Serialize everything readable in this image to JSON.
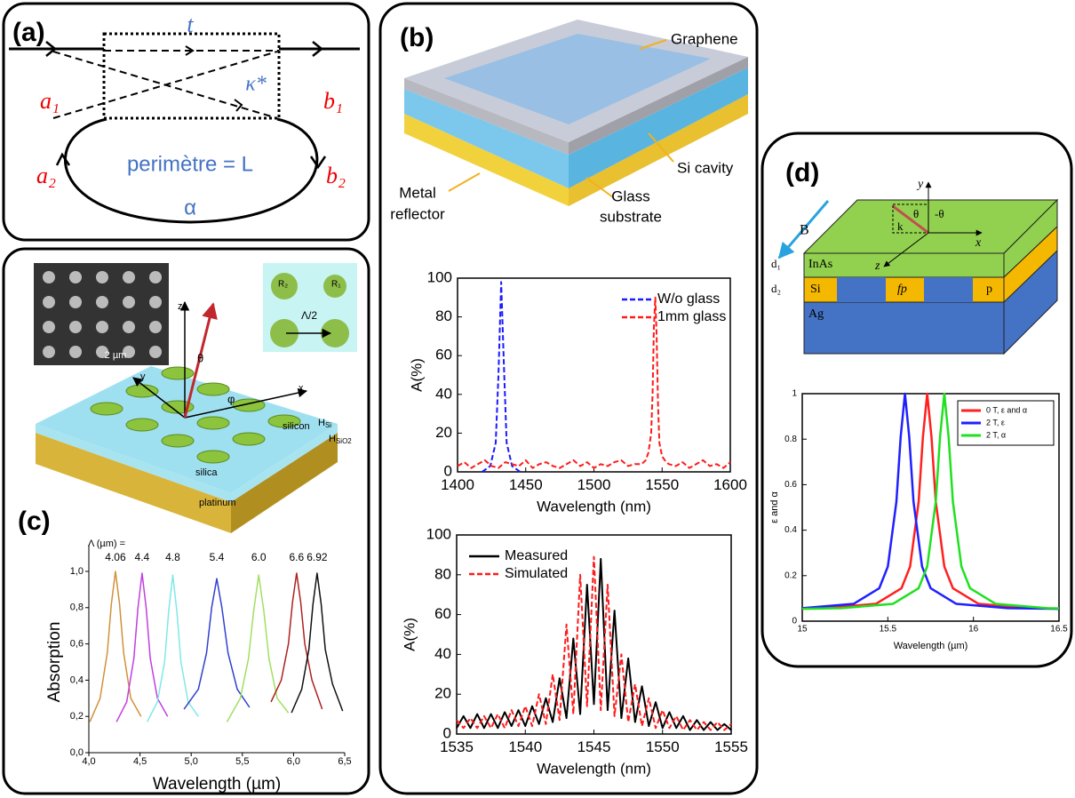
{
  "panel_labels": [
    "(a)",
    "(b)",
    "(c)",
    "(d)"
  ],
  "diagram_a": {
    "t": "t",
    "kappa": "κ*",
    "a1": "a₁",
    "b1": "b₁",
    "a2": "a₂",
    "b2": "b₂",
    "perimeter": "perimètre = L",
    "alpha": "α"
  },
  "diagram_b": {
    "graphene": "Graphene",
    "si_cavity": "Si cavity",
    "glass": [
      "Glass",
      "substrate"
    ],
    "metal": [
      "Metal",
      "reflector"
    ]
  },
  "diagram_c": {
    "scale": "2 µm",
    "r2": "R₂",
    "r1": "R₁",
    "lambda_half": "Λ/2",
    "z": "z",
    "theta": "θ",
    "phi": "φ",
    "x": "x",
    "y": "y",
    "silicon": "silicon",
    "silica": "silica",
    "platinum": "platinum",
    "h_si": {
      "main": "H",
      "sub": "Si"
    },
    "h_sio2": {
      "main": "H",
      "sub": "SiO2"
    }
  },
  "diagram_d": {
    "b": "B",
    "y": "y",
    "theta": "θ",
    "minus_theta": "-θ",
    "k": "k",
    "x": "x",
    "z": "z",
    "d1": "d₁",
    "d2": "d₂",
    "inas": "InAs",
    "si": "Si",
    "fp": "fp",
    "p": "p",
    "ag": "Ag"
  },
  "chart_data": [
    {
      "type": "line",
      "xlabel": "Wavelength (nm)",
      "ylabel": "A(%)",
      "xlim": [
        1400,
        1600
      ],
      "ylim": [
        0,
        100
      ],
      "xticks": [
        1400,
        1450,
        1500,
        1550,
        1600
      ],
      "yticks": [
        0,
        20,
        40,
        60,
        80,
        100
      ],
      "frame": true,
      "legend": "upper right",
      "series": [
        {
          "name": "W/o glass",
          "color": "#1a1aff",
          "style": "dashed",
          "x": [
            1418,
            1424,
            1428,
            1430,
            1432,
            1434,
            1436,
            1440,
            1446
          ],
          "values": [
            0,
            3,
            15,
            50,
            98,
            55,
            15,
            3,
            0
          ]
        },
        {
          "name": "1mm glass",
          "color": "#ff1a1a",
          "style": "dashed",
          "x": [
            1400,
            1405,
            1410,
            1415,
            1420,
            1425,
            1430,
            1435,
            1440,
            1445,
            1450,
            1455,
            1460,
            1465,
            1470,
            1475,
            1480,
            1485,
            1490,
            1495,
            1500,
            1505,
            1510,
            1515,
            1520,
            1525,
            1530,
            1535,
            1538,
            1540,
            1542,
            1543,
            1544,
            1545,
            1546,
            1547,
            1548,
            1550,
            1553,
            1555,
            1560,
            1565,
            1570,
            1575,
            1580,
            1585,
            1590,
            1595,
            1600
          ],
          "values": [
            3,
            5,
            2,
            4,
            6,
            3,
            2,
            5,
            4,
            3,
            6,
            2,
            4,
            5,
            3,
            2,
            4,
            6,
            3,
            5,
            2,
            4,
            3,
            5,
            6,
            3,
            4,
            4,
            6,
            10,
            20,
            40,
            75,
            90,
            70,
            35,
            15,
            8,
            5,
            4,
            3,
            5,
            2,
            4,
            6,
            3,
            4,
            2,
            5
          ]
        }
      ]
    },
    {
      "type": "line",
      "xlabel": "Wavelength (nm)",
      "ylabel": "A(%)",
      "xlim": [
        1535,
        1555
      ],
      "ylim": [
        0,
        100
      ],
      "xticks": [
        1535,
        1540,
        1545,
        1550,
        1555
      ],
      "yticks": [
        0,
        20,
        40,
        60,
        80,
        100
      ],
      "frame": true,
      "legend": "upper left",
      "series": [
        {
          "name": "Measured",
          "color": "#000000",
          "style": "solid",
          "x": [
            1535,
            1535.5,
            1536,
            1536.5,
            1537,
            1537.5,
            1538,
            1538.5,
            1539,
            1539.5,
            1540,
            1540.5,
            1541,
            1541.5,
            1542,
            1542.5,
            1543,
            1543.5,
            1544,
            1544.5,
            1545,
            1545.5,
            1546,
            1546.5,
            1547,
            1547.5,
            1548,
            1548.5,
            1549,
            1549.5,
            1550,
            1550.5,
            1551,
            1551.5,
            1552,
            1552.5,
            1553,
            1553.5,
            1554,
            1554.5,
            1555
          ],
          "values": [
            3,
            9,
            3,
            10,
            3,
            10,
            3,
            11,
            4,
            12,
            4,
            14,
            5,
            18,
            6,
            28,
            8,
            48,
            10,
            75,
            15,
            88,
            12,
            62,
            8,
            38,
            6,
            24,
            4,
            16,
            3,
            11,
            3,
            9,
            2,
            7,
            2,
            6,
            2,
            5,
            2
          ]
        },
        {
          "name": "Simulated",
          "color": "#ff1a1a",
          "style": "dashed",
          "x": [
            1535,
            1535.5,
            1536,
            1536.5,
            1537,
            1537.5,
            1538,
            1538.5,
            1539,
            1539.5,
            1540,
            1540.5,
            1541,
            1541.5,
            1542,
            1542.5,
            1543,
            1543.5,
            1544,
            1544.5,
            1545,
            1545.5,
            1546,
            1546.5,
            1547,
            1547.5,
            1548,
            1548.5,
            1549,
            1549.5,
            1550,
            1550.5,
            1551,
            1551.5,
            1552,
            1552.5,
            1553,
            1553.5,
            1554,
            1554.5,
            1555
          ],
          "values": [
            7,
            3,
            8,
            3,
            9,
            3,
            10,
            3,
            12,
            4,
            14,
            4,
            20,
            5,
            30,
            7,
            55,
            10,
            80,
            14,
            89,
            12,
            75,
            9,
            40,
            6,
            25,
            4,
            18,
            3,
            12,
            3,
            9,
            2,
            7,
            2,
            6,
            2,
            6,
            2,
            5
          ]
        }
      ]
    },
    {
      "type": "line",
      "xlabel": "Wavelength (µm)",
      "ylabel": "Absorption",
      "note": "Λ (µm) =",
      "xlim": [
        4,
        6.5
      ],
      "ylim": [
        0,
        1
      ],
      "xticks": [
        {
          "value": 4,
          "label": "4,0"
        },
        {
          "value": 4.5,
          "label": "4,5"
        },
        {
          "value": 5,
          "label": "5,0"
        },
        {
          "value": 5.5,
          "label": "5,5"
        },
        {
          "value": 6,
          "label": "6,0"
        },
        {
          "value": 6.5,
          "label": "6,5"
        }
      ],
      "yticks": [
        {
          "value": 0,
          "label": "0,0"
        },
        {
          "value": 0.2,
          "label": "0,2"
        },
        {
          "value": 0.4,
          "label": "0,4"
        },
        {
          "value": 0.6,
          "label": "0,6"
        },
        {
          "value": 0.8,
          "label": "0,8"
        },
        {
          "value": 1,
          "label": "1,0"
        }
      ],
      "frame": false,
      "series": [
        {
          "label": "4.06",
          "color": "#d2913a",
          "x": [
            4.01,
            4.11,
            4.18,
            4.22,
            4.26,
            4.3,
            4.34,
            4.41,
            4.51
          ],
          "values": [
            0.17,
            0.3,
            0.55,
            0.82,
            1,
            0.82,
            0.55,
            0.3,
            0.2
          ]
        },
        {
          "label": "4.4",
          "color": "#c040e0",
          "x": [
            4.27,
            4.37,
            4.44,
            4.48,
            4.52,
            4.56,
            4.6,
            4.67,
            4.77
          ],
          "values": [
            0.17,
            0.28,
            0.52,
            0.8,
            0.99,
            0.8,
            0.52,
            0.3,
            0.2
          ]
        },
        {
          "label": "4.8",
          "color": "#80e8e8",
          "x": [
            4.57,
            4.67,
            4.74,
            4.78,
            4.82,
            4.86,
            4.9,
            4.97,
            5.07
          ],
          "values": [
            0.17,
            0.28,
            0.5,
            0.78,
            0.98,
            0.78,
            0.5,
            0.28,
            0.2
          ]
        },
        {
          "label": "5.4",
          "color": "#3040d0",
          "x": [
            4.93,
            5.07,
            5.15,
            5.2,
            5.25,
            5.3,
            5.36,
            5.45,
            5.57
          ],
          "values": [
            0.24,
            0.35,
            0.55,
            0.8,
            0.96,
            0.8,
            0.55,
            0.35,
            0.25
          ]
        },
        {
          "label": "6.0",
          "color": "#a0e060",
          "x": [
            5.35,
            5.48,
            5.56,
            5.61,
            5.66,
            5.71,
            5.76,
            5.84,
            5.95
          ],
          "values": [
            0.17,
            0.3,
            0.52,
            0.78,
            0.98,
            0.78,
            0.52,
            0.3,
            0.22
          ]
        },
        {
          "label": "6.6",
          "color": "#b02020",
          "x": [
            5.78,
            5.88,
            5.95,
            5.99,
            6.03,
            6.07,
            6.11,
            6.18,
            6.28
          ],
          "values": [
            0.28,
            0.4,
            0.6,
            0.83,
            0.99,
            0.83,
            0.6,
            0.4,
            0.24
          ]
        },
        {
          "label": "6.92",
          "color": "#111111",
          "x": [
            5.98,
            6.08,
            6.15,
            6.19,
            6.23,
            6.27,
            6.31,
            6.38,
            6.48
          ],
          "values": [
            0.22,
            0.35,
            0.57,
            0.82,
            0.99,
            0.82,
            0.57,
            0.38,
            0.23
          ]
        }
      ]
    },
    {
      "type": "line",
      "xlabel": "Wavelength (µm)",
      "ylabel": "ε and α",
      "xlim": [
        15,
        16.5
      ],
      "ylim": [
        0,
        1
      ],
      "xticks": [
        15,
        15.5,
        16,
        16.5
      ],
      "yticks": [
        0,
        0.2,
        0.4,
        0.6,
        0.8,
        1
      ],
      "frame": true,
      "legend": "upper right",
      "series": [
        {
          "name": "0 T, ε and α",
          "color": "#ff2020",
          "style": "solid",
          "x": [
            15,
            15.13,
            15.43,
            15.58,
            15.63,
            15.68,
            15.705,
            15.73,
            15.755,
            15.78,
            15.83,
            15.88,
            16.03,
            16.33,
            16.5
          ],
          "values": [
            0.055,
            0.057,
            0.076,
            0.145,
            0.24,
            0.525,
            0.81,
            1,
            0.81,
            0.525,
            0.24,
            0.145,
            0.076,
            0.057,
            0.055
          ]
        },
        {
          "name": "2 T, ε",
          "color": "#2020ff",
          "style": "solid",
          "x": [
            15,
            15.3,
            15.45,
            15.5,
            15.55,
            15.575,
            15.6,
            15.625,
            15.65,
            15.7,
            15.75,
            15.9,
            16.2,
            16.5
          ],
          "values": [
            0.057,
            0.076,
            0.145,
            0.24,
            0.525,
            0.81,
            1,
            0.81,
            0.525,
            0.24,
            0.145,
            0.076,
            0.057,
            0.054
          ]
        },
        {
          "name": "2 T, α",
          "color": "#20e020",
          "style": "solid",
          "x": [
            15,
            15.23,
            15.53,
            15.68,
            15.73,
            15.78,
            15.805,
            15.83,
            15.855,
            15.88,
            15.93,
            15.98,
            16.13,
            16.43,
            16.5
          ],
          "values": [
            0.054,
            0.057,
            0.076,
            0.145,
            0.24,
            0.525,
            0.81,
            1,
            0.81,
            0.525,
            0.24,
            0.145,
            0.076,
            0.057,
            0.056
          ]
        }
      ]
    }
  ]
}
